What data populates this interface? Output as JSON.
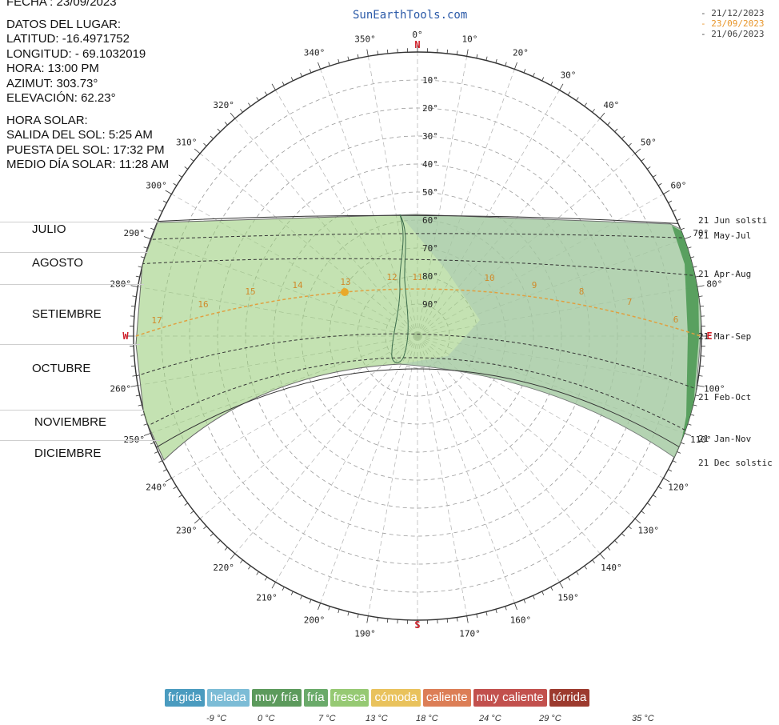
{
  "info": {
    "fecha": "FECHA : 23/09/2023",
    "datos": "DATOS DEL LUGAR:",
    "latitud": "LATITUD: -16.4971752",
    "longitud": "LONGITUD: - 69.1032019",
    "hora": "HORA: 13:00 PM",
    "azimut": "AZIMUT: 303.73°",
    "elevacion": "ELEVACIÓN: 62.23°",
    "hora_solar": "HORA SOLAR:",
    "salida": "SALIDA DEL SOL: 5:25 AM",
    "puesta": "PUESTA DEL SOL: 17:32 PM",
    "medio_dia": "MEDIO DÍA SOLAR: 11:28 AM"
  },
  "brand": "SunEarthTools.com",
  "date_legend": [
    {
      "label": "- 21/12/2023",
      "color": "#444444"
    },
    {
      "label": "- 23/09/2023",
      "color": "#e8962b"
    },
    {
      "label": "- 21/06/2023",
      "color": "#444444"
    }
  ],
  "months": [
    "JULIO",
    "AGOSTO",
    "SETIEMBRE",
    "OCTUBRE",
    "NOVIEMBRE",
    "DICIEMBRE"
  ],
  "compass": {
    "north": "N",
    "south": "S",
    "east": "E",
    "west": "W"
  },
  "azimuth_labels": [
    "0°",
    "10°",
    "20°",
    "30°",
    "40°",
    "50°",
    "60°",
    "70°",
    "80°",
    "100°",
    "110°",
    "120°",
    "130°",
    "140°",
    "150°",
    "160°",
    "170°",
    "190°",
    "200°",
    "210°",
    "220°",
    "230°",
    "240°",
    "250°",
    "260°",
    "280°",
    "290°",
    "300°",
    "310°",
    "320°",
    "340°",
    "350°"
  ],
  "elevation_labels": [
    "10°",
    "20°",
    "30°",
    "40°",
    "50°",
    "60°",
    "70°",
    "80°",
    "90°"
  ],
  "curve_labels": [
    "21 Jun  solsti",
    "21 May-Jul",
    "21 Apr-Aug",
    "21 Mar-Sep",
    "21 Feb-Oct",
    "21 Jan-Nov",
    "21 Dec  solstic"
  ],
  "hour_labels": [
    "17",
    "16",
    "15",
    "14",
    "13",
    "12",
    "11",
    "10",
    "9",
    "8",
    "7",
    "6"
  ],
  "current_sun": {
    "azimuth": 303.73,
    "elevation": 62.23,
    "hour": "13"
  },
  "comfort_legend": [
    {
      "label": "frígida",
      "color": "#4a9bbf"
    },
    {
      "label": "helada",
      "color": "#7cbcd6"
    },
    {
      "label": "muy fría",
      "color": "#5c9a5c"
    },
    {
      "label": "fría",
      "color": "#6aaa6a"
    },
    {
      "label": "fresca",
      "color": "#96c973"
    },
    {
      "label": "cómoda",
      "color": "#e9c25c"
    },
    {
      "label": "caliente",
      "color": "#dc7e56"
    },
    {
      "label": "muy caliente",
      "color": "#c2504d"
    },
    {
      "label": "tórrida",
      "color": "#9c3a2e"
    }
  ],
  "temperatures": [
    "-9 °C",
    "0 °C",
    "7 °C",
    "13 °C",
    "18 °C",
    "24 °C",
    "29 °C",
    "35 °C"
  ]
}
